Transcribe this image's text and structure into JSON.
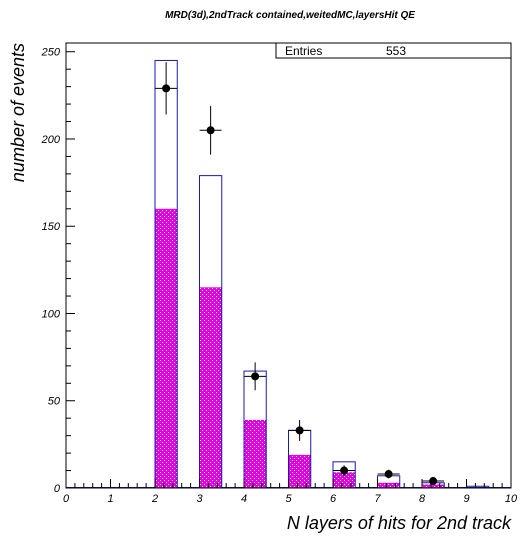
{
  "chart_data": {
    "type": "bar",
    "title": "MRD(3d),2ndTrack contained,weitedMC,layersHit QE",
    "xlabel": "N layers of hits for 2nd track",
    "ylabel": "number of events",
    "xlim": [
      0,
      10
    ],
    "ylim": [
      0,
      255
    ],
    "x_ticks": [
      "0",
      "1",
      "2",
      "3",
      "4",
      "5",
      "6",
      "7",
      "8",
      "9",
      "10"
    ],
    "y_ticks": [
      "0",
      "50",
      "100",
      "150",
      "200",
      "250"
    ],
    "x_tick_values": [
      0,
      1,
      2,
      3,
      4,
      5,
      6,
      7,
      8,
      9,
      10
    ],
    "y_tick_values": [
      0,
      50,
      100,
      150,
      200,
      250
    ],
    "stats_box": {
      "label": "Entries",
      "value": "553"
    },
    "bins": {
      "low_edges": [
        2,
        3,
        4,
        5,
        6,
        7,
        8,
        9
      ],
      "width": 0.5
    },
    "series": [
      {
        "style": "outline",
        "color": "#1a1aa8",
        "values": [
          245,
          179,
          67,
          33,
          15,
          7,
          3,
          1
        ]
      },
      {
        "style": "hatched-fill",
        "color": "#e000e0",
        "values": [
          160,
          115,
          39,
          19,
          9,
          3,
          2,
          0
        ]
      },
      {
        "style": "points-with-errors",
        "color": "#000000",
        "x": [
          2.25,
          3.25,
          4.25,
          5.25,
          6.25,
          7.25,
          8.25
        ],
        "values": [
          229,
          205,
          64,
          33,
          10,
          8,
          4
        ],
        "errors": [
          15,
          14,
          8,
          6,
          3,
          2.5,
          2
        ]
      }
    ]
  }
}
